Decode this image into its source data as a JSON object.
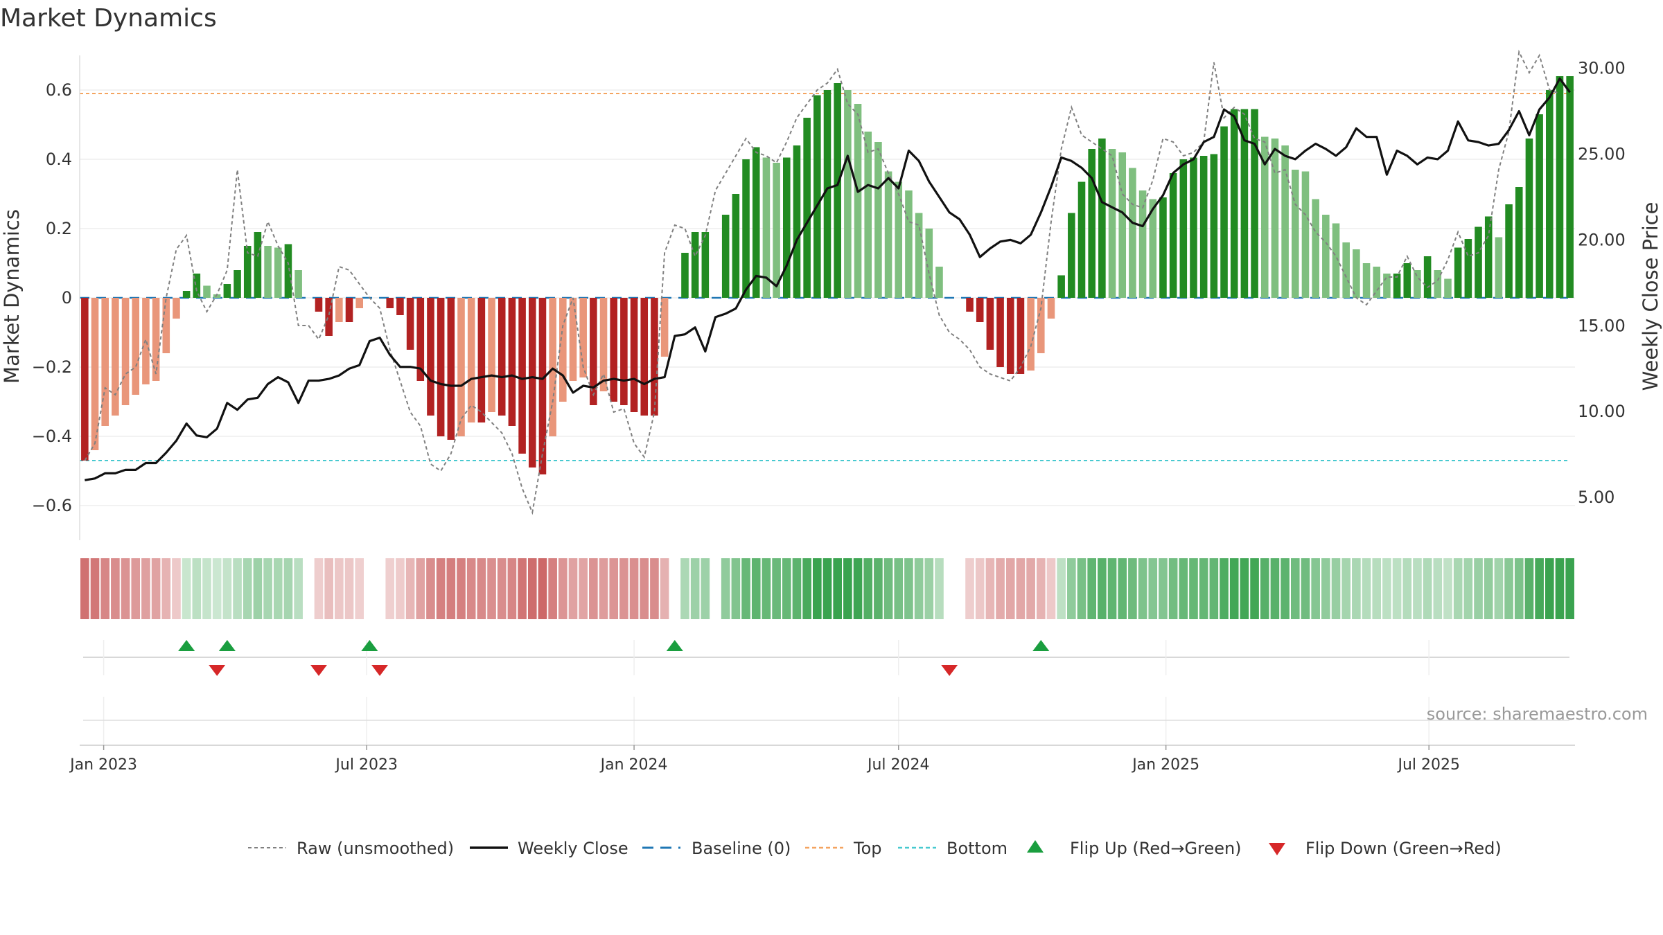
{
  "chart_data": {
    "type": "bar",
    "title": "Market Dynamics",
    "ylabel_left": "Market Dynamics",
    "ylabel_right": "Weekly Close Price",
    "left_axis": {
      "ylim": [
        -0.7,
        0.7
      ],
      "ticks": [
        -0.6,
        -0.4,
        -0.2,
        0,
        0.2,
        0.4,
        0.6
      ],
      "tick_labels": [
        "−0.6",
        "−0.4",
        "−0.2",
        "0",
        "0.2",
        "0.4",
        "0.6"
      ]
    },
    "right_axis": {
      "ylim": [
        2.5,
        30.75
      ],
      "ticks": [
        5,
        10,
        15,
        20,
        25,
        30
      ],
      "tick_labels": [
        "5.00",
        "10.00",
        "15.00",
        "20.00",
        "25.00",
        "30.00"
      ]
    },
    "x_axis": {
      "start": "2022-12-19",
      "weeks": 145,
      "tick_labels": [
        "Jan 2023",
        "Jul 2023",
        "Jan 2024",
        "Jul 2024",
        "Jan 2025",
        "Jul 2025"
      ],
      "tick_dates": [
        "2023-01-01",
        "2023-07-01",
        "2024-01-01",
        "2024-07-01",
        "2025-01-01",
        "2025-07-01"
      ]
    },
    "thresholds": {
      "top": 0.59,
      "bottom": -0.47,
      "baseline": 0
    },
    "series": [
      {
        "name": "Market Dynamics",
        "kind": "bar",
        "values": [
          -0.47,
          -0.44,
          -0.37,
          -0.34,
          -0.31,
          -0.28,
          -0.25,
          -0.24,
          -0.16,
          -0.06,
          0.02,
          0.07,
          0.035,
          0.01,
          0.04,
          0.08,
          0.15,
          0.19,
          0.15,
          0.145,
          0.155,
          0.08,
          0.0,
          -0.04,
          -0.11,
          -0.07,
          -0.07,
          -0.03,
          0.0,
          0.0,
          -0.03,
          -0.05,
          -0.15,
          -0.24,
          -0.34,
          -0.4,
          -0.41,
          -0.4,
          -0.36,
          -0.36,
          -0.33,
          -0.34,
          -0.37,
          -0.45,
          -0.49,
          -0.51,
          -0.4,
          -0.3,
          -0.24,
          -0.23,
          -0.31,
          -0.27,
          -0.3,
          -0.31,
          -0.33,
          -0.34,
          -0.34,
          -0.17,
          0.0,
          0.13,
          0.19,
          0.19,
          0.0,
          0.24,
          0.3,
          0.4,
          0.435,
          0.405,
          0.39,
          0.405,
          0.44,
          0.52,
          0.585,
          0.6,
          0.62,
          0.6,
          0.56,
          0.48,
          0.45,
          0.365,
          0.335,
          0.31,
          0.245,
          0.2,
          0.09,
          0.0,
          0.0,
          -0.04,
          -0.07,
          -0.15,
          -0.2,
          -0.22,
          -0.22,
          -0.21,
          -0.16,
          -0.06,
          0.065,
          0.245,
          0.335,
          0.43,
          0.46,
          0.43,
          0.42,
          0.375,
          0.31,
          0.285,
          0.29,
          0.36,
          0.4,
          0.405,
          0.41,
          0.415,
          0.495,
          0.545,
          0.545,
          0.545,
          0.465,
          0.46,
          0.44,
          0.37,
          0.365,
          0.285,
          0.24,
          0.215,
          0.16,
          0.14,
          0.1,
          0.09,
          0.07,
          0.07,
          0.1,
          0.08,
          0.12,
          0.08,
          0.055,
          0.145,
          0.17,
          0.205,
          0.235,
          0.175,
          0.27,
          0.32,
          0.46,
          0.53,
          0.6,
          0.64,
          0.64
        ]
      },
      {
        "name": "Raw (unsmoothed)",
        "kind": "line",
        "values": [
          -0.47,
          -0.42,
          -0.26,
          -0.28,
          -0.22,
          -0.2,
          -0.12,
          -0.22,
          0.0,
          0.14,
          0.18,
          0.02,
          -0.04,
          0.01,
          0.08,
          0.37,
          0.13,
          0.12,
          0.22,
          0.15,
          0.1,
          -0.08,
          -0.08,
          -0.12,
          -0.05,
          0.09,
          0.08,
          0.04,
          0.0,
          -0.03,
          -0.15,
          -0.24,
          -0.33,
          -0.37,
          -0.48,
          -0.5,
          -0.45,
          -0.35,
          -0.31,
          -0.33,
          -0.36,
          -0.39,
          -0.45,
          -0.55,
          -0.62,
          -0.45,
          -0.3,
          -0.08,
          0.0,
          -0.2,
          -0.28,
          -0.22,
          -0.33,
          -0.32,
          -0.42,
          -0.46,
          -0.33,
          0.13,
          0.21,
          0.2,
          0.12,
          0.18,
          0.31,
          0.36,
          0.41,
          0.46,
          0.42,
          0.41,
          0.39,
          0.45,
          0.52,
          0.56,
          0.6,
          0.62,
          0.66,
          0.56,
          0.53,
          0.42,
          0.43,
          0.36,
          0.3,
          0.22,
          0.21,
          0.07,
          -0.05,
          -0.1,
          -0.12,
          -0.15,
          -0.2,
          -0.22,
          -0.23,
          -0.24,
          -0.2,
          -0.14,
          -0.03,
          0.22,
          0.43,
          0.55,
          0.47,
          0.45,
          0.43,
          0.41,
          0.3,
          0.27,
          0.26,
          0.34,
          0.46,
          0.45,
          0.41,
          0.42,
          0.45,
          0.68,
          0.52,
          0.55,
          0.53,
          0.46,
          0.45,
          0.36,
          0.37,
          0.27,
          0.24,
          0.19,
          0.16,
          0.12,
          0.06,
          0.0,
          -0.02,
          0.02,
          0.06,
          0.06,
          0.12,
          0.06,
          0.03,
          0.05,
          0.11,
          0.19,
          0.12,
          0.13,
          0.18,
          0.37,
          0.48,
          0.71,
          0.65,
          0.7,
          0.6,
          0.59
        ]
      },
      {
        "name": "Weekly Close",
        "kind": "line",
        "axis": "right",
        "values": [
          6.0,
          6.1,
          6.4,
          6.4,
          6.6,
          6.6,
          7.0,
          7.0,
          7.6,
          8.3,
          9.3,
          8.6,
          8.5,
          9.0,
          10.5,
          10.1,
          10.7,
          10.8,
          11.6,
          12.0,
          11.7,
          10.5,
          11.8,
          11.8,
          11.9,
          12.1,
          12.5,
          12.7,
          14.1,
          14.3,
          13.3,
          12.6,
          12.6,
          12.5,
          11.8,
          11.6,
          11.5,
          11.5,
          11.9,
          12.0,
          12.1,
          12.0,
          12.1,
          11.9,
          12.0,
          11.9,
          12.5,
          12.1,
          11.1,
          11.5,
          11.4,
          11.8,
          11.9,
          11.8,
          11.9,
          11.6,
          11.9,
          12.0,
          14.4,
          14.5,
          14.9,
          13.5,
          15.5,
          15.7,
          16.0,
          17.1,
          17.9,
          17.8,
          17.3,
          18.5,
          20.0,
          21.0,
          22.0,
          23.0,
          23.2,
          24.9,
          22.8,
          23.2,
          23.0,
          23.6,
          23.0,
          25.2,
          24.6,
          23.4,
          22.5,
          21.6,
          21.2,
          20.3,
          19.0,
          19.5,
          19.9,
          20.0,
          19.8,
          20.3,
          21.6,
          23.1,
          24.8,
          24.6,
          24.2,
          23.6,
          22.2,
          21.9,
          21.6,
          21.0,
          20.8,
          21.8,
          22.6,
          23.9,
          24.4,
          24.7,
          25.7,
          26.0,
          27.6,
          27.2,
          25.8,
          25.6,
          24.4,
          25.3,
          24.9,
          24.7,
          25.2,
          25.6,
          25.3,
          24.9,
          25.4,
          26.5,
          26.0,
          26.0,
          23.8,
          25.2,
          24.9,
          24.4,
          24.8,
          24.7,
          25.2,
          26.9,
          25.8,
          25.7,
          25.5,
          25.6,
          26.4,
          27.5,
          26.1,
          27.6,
          28.3,
          29.4,
          28.6
        ]
      }
    ],
    "flip_up_weeks": [
      10,
      14,
      28,
      58,
      94
    ],
    "flip_down_weeks": [
      13,
      23,
      29,
      85
    ],
    "regime_strip": "color band per week, shaded by dynamics sign and strength",
    "legend": {
      "placement": "bottom-center",
      "items": [
        "Raw (unsmoothed)",
        "Weekly Close",
        "Baseline (0)",
        "Top",
        "Bottom",
        "Flip Up (Red→Green)",
        "Flip Down (Green→Red)"
      ]
    },
    "colors": {
      "strong_green": "#228b22",
      "light_green": "#7fbf7f",
      "strong_red": "#b22222",
      "light_red": "#e9967a",
      "top_line": "#f4a460",
      "bottom_line": "#48c9d0",
      "baseline": "#1f77b4",
      "raw": "#808080",
      "close": "#111111",
      "flip_up": "#1a9e3f",
      "flip_down": "#d62728"
    },
    "grid": true
  },
  "source": "source: sharemaestro.com"
}
